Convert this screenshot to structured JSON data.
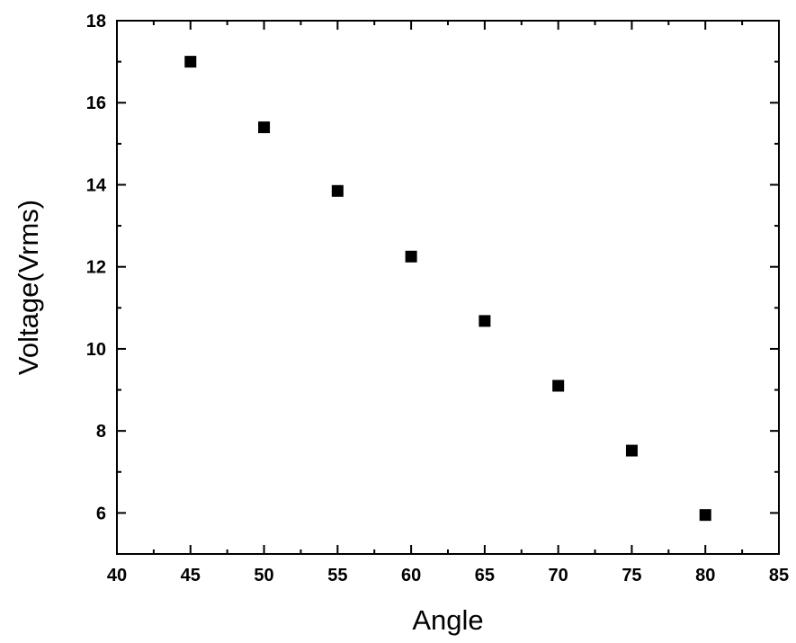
{
  "chart_data": {
    "type": "scatter",
    "title": "",
    "xlabel": "Angle",
    "ylabel": "Voltage(Vrms)",
    "xlim": [
      40,
      85
    ],
    "ylim": [
      5,
      18
    ],
    "x_ticks": [
      40,
      45,
      50,
      55,
      60,
      65,
      70,
      75,
      80,
      85
    ],
    "y_ticks": [
      6,
      8,
      10,
      12,
      14,
      16,
      18
    ],
    "x_minor_step": 2.5,
    "y_minor_step": 1,
    "grid": false,
    "marker": "square",
    "marker_color": "#000000",
    "series": [
      {
        "x": [
          45,
          50,
          55,
          60,
          65,
          70,
          75,
          80
        ],
        "y": [
          17.0,
          15.4,
          13.85,
          12.25,
          10.68,
          9.1,
          7.52,
          5.95
        ]
      }
    ]
  }
}
